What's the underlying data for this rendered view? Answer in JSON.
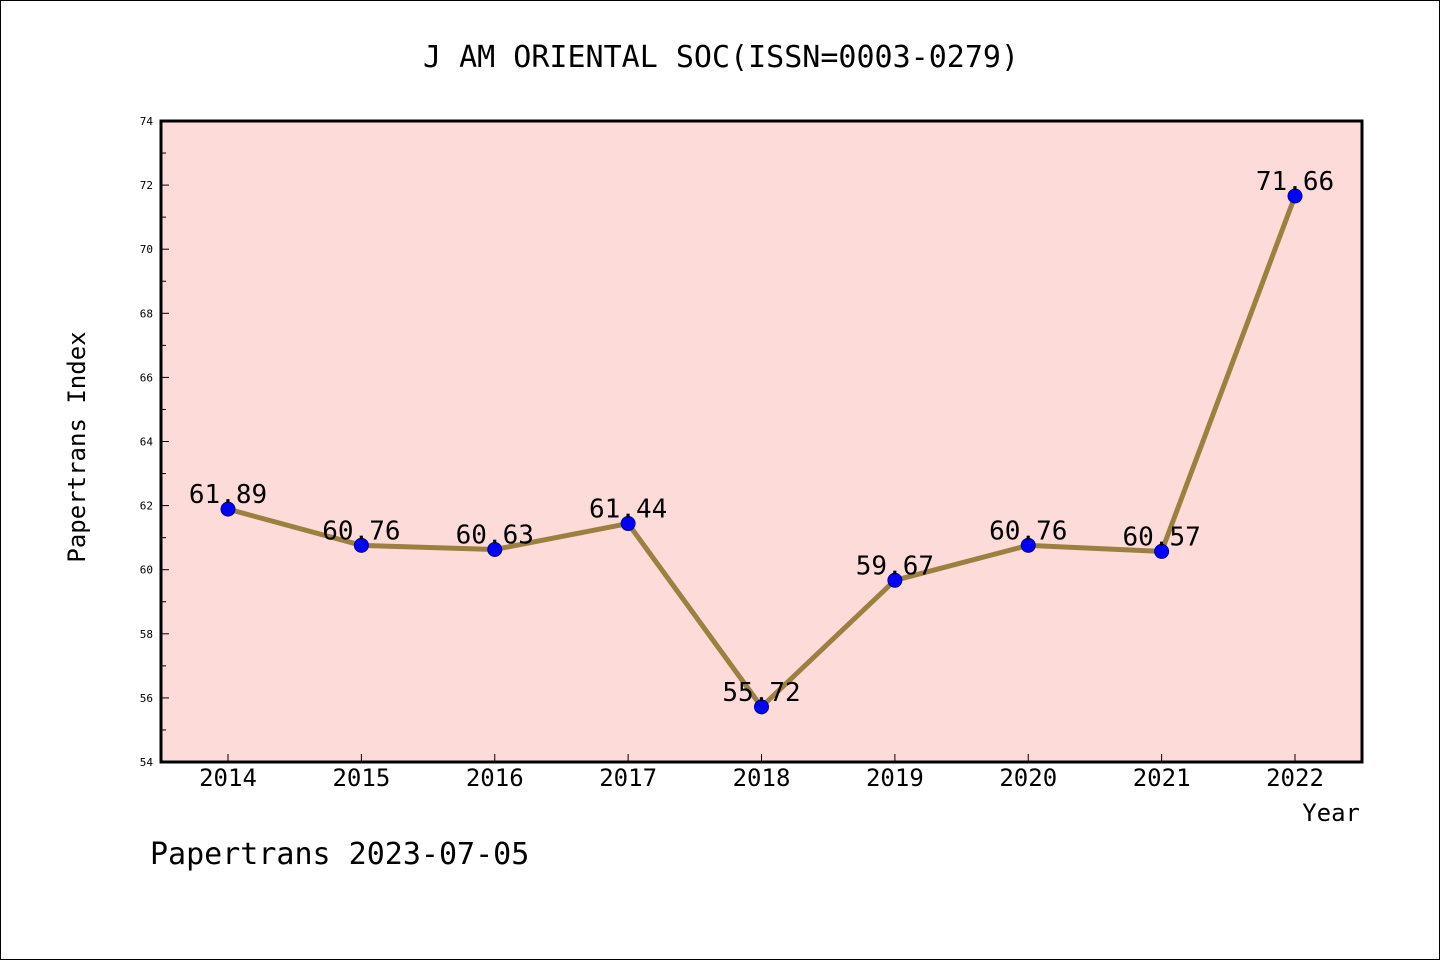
{
  "chart_data": {
    "type": "line",
    "title": "J AM ORIENTAL SOC(ISSN=0003-0279)",
    "xlabel": "Year",
    "ylabel": "Papertrans Index",
    "categories": [
      "2014",
      "2015",
      "2016",
      "2017",
      "2018",
      "2019",
      "2020",
      "2021",
      "2022"
    ],
    "series": [
      {
        "values": [
          61.89,
          60.76,
          60.63,
          61.44,
          55.72,
          59.67,
          60.76,
          60.57,
          71.66
        ],
        "labels": [
          "61.89",
          "60.76",
          "60.63",
          "61.44",
          "55.72",
          "59.67",
          "60.76",
          "60.57",
          "71.66"
        ]
      }
    ],
    "ylim": [
      54,
      74
    ],
    "yticks": [
      "54",
      "56",
      "58",
      "60",
      "62",
      "64",
      "66",
      "68",
      "70",
      "72",
      "74"
    ],
    "grid": false,
    "colors": {
      "plot_background": "#fddbd8",
      "line": "#9b8040",
      "marker": "#0000ff",
      "marker_edge": "#00008b"
    }
  },
  "footer": "Papertrans 2023-07-05"
}
